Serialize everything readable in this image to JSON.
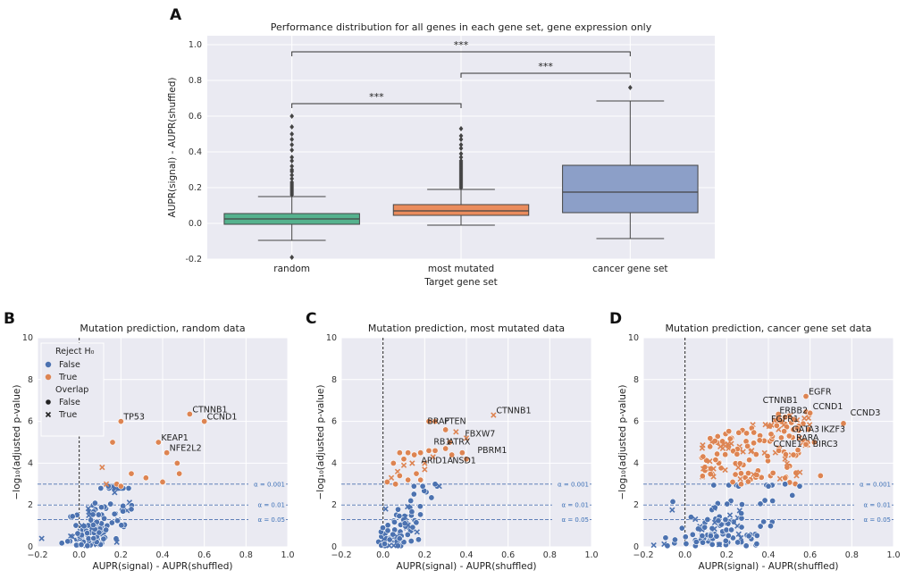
{
  "panel_letters": [
    "A",
    "B",
    "C",
    "D"
  ],
  "colors": {
    "plot_bg": "#eaeaf2",
    "grid": "#ffffff",
    "rejected": "#dd8452",
    "not_rejected": "#4c72b0",
    "box_random": "#55b28e",
    "box_most_mutated": "#ea8c5d",
    "box_cancer": "#8c9fc8",
    "alpha_line": "#4c72b0"
  },
  "chart_data": [
    {
      "panel": "A",
      "type": "box",
      "title": "Performance distribution for all genes in each gene set, gene expression only",
      "xlabel": "Target gene set",
      "ylabel": "AUPR(signal) - AUPR(shuffled)",
      "ylim": [
        -0.2,
        1.05
      ],
      "yticks": [
        -0.2,
        0.0,
        0.2,
        0.4,
        0.6,
        0.8,
        1.0
      ],
      "ytick_labels": [
        "-0.2",
        "0.0",
        "0.2",
        "0.4",
        "0.6",
        "0.8",
        "1.0"
      ],
      "categories": [
        "random",
        "most mutated",
        "cancer gene set"
      ],
      "boxes": [
        {
          "name": "random",
          "q1": -0.005,
          "median": 0.025,
          "q3": 0.055,
          "whisker_low": -0.095,
          "whisker_high": 0.15,
          "outliers": [
            -0.19,
            0.16,
            0.17,
            0.18,
            0.19,
            0.2,
            0.21,
            0.22,
            0.23,
            0.25,
            0.27,
            0.29,
            0.3,
            0.32,
            0.35,
            0.37,
            0.41,
            0.44,
            0.47,
            0.5,
            0.54,
            0.6
          ]
        },
        {
          "name": "most mutated",
          "q1": 0.045,
          "median": 0.07,
          "q3": 0.105,
          "whisker_low": -0.01,
          "whisker_high": 0.19,
          "outliers": [
            0.2,
            0.21,
            0.22,
            0.23,
            0.24,
            0.25,
            0.26,
            0.27,
            0.28,
            0.29,
            0.3,
            0.31,
            0.32,
            0.33,
            0.34,
            0.35,
            0.37,
            0.39,
            0.42,
            0.44,
            0.47,
            0.49,
            0.53
          ]
        },
        {
          "name": "cancer gene set",
          "q1": 0.06,
          "median": 0.175,
          "q3": 0.325,
          "whisker_low": -0.085,
          "whisker_high": 0.685,
          "outliers": [
            0.76
          ]
        }
      ],
      "significance": [
        {
          "from": "random",
          "to": "cancer gene set",
          "y": 0.96,
          "label": "***"
        },
        {
          "from": "most mutated",
          "to": "cancer gene set",
          "y": 0.84,
          "label": "***"
        },
        {
          "from": "random",
          "to": "most mutated",
          "y": 0.67,
          "label": "***"
        }
      ]
    },
    {
      "panel": "B",
      "type": "scatter",
      "title": "Mutation prediction, random data",
      "xlabel": "AUPR(signal) - AUPR(shuffled)",
      "ylabel": "−log₁₀(adjusted p-value)",
      "xlim": [
        -0.2,
        1.0
      ],
      "ylim": [
        0,
        10
      ],
      "xticks": [
        -0.2,
        0.0,
        0.2,
        0.4,
        0.6,
        0.8,
        1.0
      ],
      "xtick_labels": [
        "−0.2",
        "0.0",
        "0.2",
        "0.4",
        "0.6",
        "0.8",
        "1.0"
      ],
      "yticks": [
        0,
        2,
        4,
        6,
        8,
        10
      ],
      "ytick_labels": [
        "0",
        "2",
        "4",
        "6",
        "8",
        "10"
      ],
      "alpha_lines": [
        {
          "y": 3.0,
          "label": "α = 0.001"
        },
        {
          "y": 2.0,
          "label": "α = 0.01"
        },
        {
          "y": 1.3,
          "label": "α = 0.05"
        }
      ],
      "legend": {
        "title": "Reject H₀",
        "reject_false": "False",
        "reject_true": "True",
        "overlap_title": "Overlap",
        "overlap_false": "False",
        "overlap_true": "True"
      },
      "points_true": [
        [
          0.53,
          6.35,
          0
        ],
        [
          0.6,
          6.0,
          0
        ],
        [
          0.2,
          6.0,
          0
        ],
        [
          0.16,
          5.0,
          0
        ],
        [
          0.38,
          5.0,
          0
        ],
        [
          0.42,
          4.5,
          0
        ],
        [
          0.47,
          4.0,
          0
        ],
        [
          0.4,
          3.1,
          0
        ],
        [
          0.25,
          3.5,
          0
        ],
        [
          0.32,
          3.3,
          0
        ],
        [
          0.48,
          3.5,
          0
        ],
        [
          0.18,
          3.0,
          0
        ],
        [
          0.11,
          3.8,
          1
        ],
        [
          0.13,
          3.0,
          1
        ],
        [
          0.2,
          2.9,
          0
        ]
      ],
      "points_false": [
        [
          -0.18,
          0.4,
          1
        ],
        [
          0.21,
          1.7,
          0
        ],
        [
          0.25,
          1.8,
          0
        ],
        [
          0.16,
          2.9,
          1
        ],
        [
          0.14,
          2.9,
          0
        ],
        [
          0.17,
          2.6,
          1
        ]
      ],
      "cluster_false": {
        "n": 120,
        "x_center": 0.03,
        "x_spread": 0.06,
        "y_max": 2.8
      },
      "labels": [
        {
          "text": "CTNNB1",
          "x": 0.53,
          "y": 6.35
        },
        {
          "text": "CCND1",
          "x": 0.6,
          "y": 6.0
        },
        {
          "text": "TP53",
          "x": 0.2,
          "y": 6.0
        },
        {
          "text": "KEAP1",
          "x": 0.38,
          "y": 5.0
        },
        {
          "text": "NFE2L2",
          "x": 0.42,
          "y": 4.5
        }
      ]
    },
    {
      "panel": "C",
      "type": "scatter",
      "title": "Mutation prediction, most mutated data",
      "xlabel": "AUPR(signal) - AUPR(shuffled)",
      "ylabel": "−log₁₀(adjusted p-value)",
      "xlim": [
        -0.2,
        1.0
      ],
      "ylim": [
        0,
        10
      ],
      "xticks": [
        -0.2,
        0.0,
        0.2,
        0.4,
        0.6,
        0.8,
        1.0
      ],
      "xtick_labels": [
        "−0.2",
        "0.0",
        "0.2",
        "0.4",
        "0.6",
        "0.8",
        "1.0"
      ],
      "yticks": [
        0,
        2,
        4,
        6,
        8,
        10
      ],
      "ytick_labels": [
        "0",
        "2",
        "4",
        "6",
        "8",
        "10"
      ],
      "alpha_lines": [
        {
          "y": 3.0,
          "label": "α = 0.001"
        },
        {
          "y": 2.0,
          "label": "α = 0.01"
        },
        {
          "y": 1.3,
          "label": "α = 0.05"
        }
      ],
      "points_true": [
        [
          0.53,
          6.3,
          1
        ],
        [
          0.22,
          6.0,
          0
        ],
        [
          0.25,
          6.0,
          0
        ],
        [
          0.3,
          5.6,
          0
        ],
        [
          0.35,
          5.5,
          1
        ],
        [
          0.32,
          5.0,
          0
        ],
        [
          0.4,
          5.2,
          1
        ],
        [
          0.25,
          4.6,
          0
        ],
        [
          0.3,
          4.7,
          0
        ],
        [
          0.38,
          4.5,
          0
        ],
        [
          0.4,
          4.2,
          0
        ],
        [
          0.33,
          4.4,
          0
        ],
        [
          0.24,
          4.3,
          1
        ],
        [
          0.22,
          4.6,
          0
        ],
        [
          0.12,
          4.5,
          0
        ],
        [
          0.15,
          4.4,
          0
        ],
        [
          0.18,
          4.5,
          0
        ],
        [
          0.1,
          4.2,
          0
        ],
        [
          0.08,
          4.5,
          0
        ],
        [
          0.05,
          4.0,
          0
        ],
        [
          0.07,
          3.6,
          1
        ],
        [
          0.1,
          3.9,
          1
        ],
        [
          0.14,
          4.0,
          1
        ],
        [
          0.16,
          3.5,
          0
        ],
        [
          0.2,
          3.7,
          1
        ],
        [
          0.12,
          3.2,
          0
        ],
        [
          0.04,
          3.3,
          1
        ],
        [
          0.06,
          3.0,
          0
        ],
        [
          0.18,
          3.2,
          0
        ],
        [
          0.2,
          4.0,
          1
        ],
        [
          0.08,
          3.4,
          0
        ],
        [
          0.02,
          3.1,
          0
        ]
      ],
      "points_false": [
        [
          0.25,
          3.0,
          0
        ],
        [
          0.27,
          2.9,
          1
        ]
      ],
      "cluster_false": {
        "n": 80,
        "x_center": 0.03,
        "x_spread": 0.04,
        "y_max": 2.9
      },
      "labels": [
        {
          "text": "CTNNB1",
          "x": 0.53,
          "y": 6.3
        },
        {
          "text": "BRAF",
          "x": 0.2,
          "y": 5.8
        },
        {
          "text": "PTEN",
          "x": 0.28,
          "y": 5.8
        },
        {
          "text": "FBXW7",
          "x": 0.38,
          "y": 5.2
        },
        {
          "text": "RB1",
          "x": 0.23,
          "y": 4.8
        },
        {
          "text": "ATRX",
          "x": 0.3,
          "y": 4.8
        },
        {
          "text": "PBRM1",
          "x": 0.44,
          "y": 4.4
        },
        {
          "text": "ARID1A",
          "x": 0.17,
          "y": 3.9
        },
        {
          "text": "NSD1",
          "x": 0.32,
          "y": 3.9
        }
      ]
    },
    {
      "panel": "D",
      "type": "scatter",
      "title": "Mutation prediction, cancer gene set data",
      "xlabel": "AUPR(signal) - AUPR(shuffled)",
      "ylabel": "−log₁₀(adjusted p-value)",
      "xlim": [
        -0.2,
        1.0
      ],
      "ylim": [
        0,
        10
      ],
      "xticks": [
        -0.2,
        0.0,
        0.2,
        0.4,
        0.6,
        0.8,
        1.0
      ],
      "xtick_labels": [
        "−0.2",
        "0.0",
        "0.2",
        "0.4",
        "0.6",
        "0.8",
        "1.0"
      ],
      "yticks": [
        0,
        2,
        4,
        6,
        8,
        10
      ],
      "ytick_labels": [
        "0",
        "2",
        "4",
        "6",
        "8",
        "10"
      ],
      "alpha_lines": [
        {
          "y": 3.0,
          "label": "α = 0.001"
        },
        {
          "y": 2.0,
          "label": "α = 0.01"
        },
        {
          "y": 1.3,
          "label": "α = 0.05"
        }
      ],
      "points_true": [
        [
          0.58,
          7.2,
          0
        ],
        [
          0.6,
          6.4,
          0
        ],
        [
          0.76,
          5.9,
          0
        ],
        [
          0.52,
          6.1,
          0
        ],
        [
          0.48,
          6.2,
          0
        ],
        [
          0.44,
          5.8,
          0
        ],
        [
          0.5,
          5.3,
          0
        ],
        [
          0.62,
          5.0,
          0
        ],
        [
          0.55,
          5.2,
          1
        ],
        [
          0.58,
          4.9,
          0
        ],
        [
          0.52,
          4.4,
          0
        ],
        [
          0.65,
          3.4,
          0
        ],
        [
          0.48,
          4.2,
          1
        ],
        [
          0.45,
          4.6,
          0
        ]
      ],
      "cluster_true": {
        "n": 150,
        "x_min": 0.08,
        "x_max": 0.6,
        "y_min": 3.0,
        "y_max": 6.6
      },
      "points_false": [
        [
          0.48,
          3.0,
          0
        ],
        [
          0.55,
          2.9,
          0
        ],
        [
          0.42,
          2.2,
          0
        ],
        [
          0.4,
          2.9,
          0
        ]
      ],
      "cluster_false": {
        "n": 110,
        "x_center": 0.12,
        "x_spread": 0.12,
        "y_max": 2.95
      },
      "labels": [
        {
          "text": "EGFR",
          "x": 0.58,
          "y": 7.2
        },
        {
          "text": "CTNNB1",
          "x": 0.36,
          "y": 6.8
        },
        {
          "text": "CCND1",
          "x": 0.6,
          "y": 6.5
        },
        {
          "text": "ERBB2",
          "x": 0.44,
          "y": 6.3
        },
        {
          "text": "CCND3",
          "x": 0.78,
          "y": 6.2
        },
        {
          "text": "FGFR1",
          "x": 0.4,
          "y": 5.9
        },
        {
          "text": "GATA3",
          "x": 0.5,
          "y": 5.4
        },
        {
          "text": "IKZF3",
          "x": 0.64,
          "y": 5.4
        },
        {
          "text": "RARA",
          "x": 0.52,
          "y": 5.0
        },
        {
          "text": "BIRC3",
          "x": 0.6,
          "y": 4.7
        },
        {
          "text": "CCNE1",
          "x": 0.41,
          "y": 4.7
        }
      ]
    }
  ]
}
